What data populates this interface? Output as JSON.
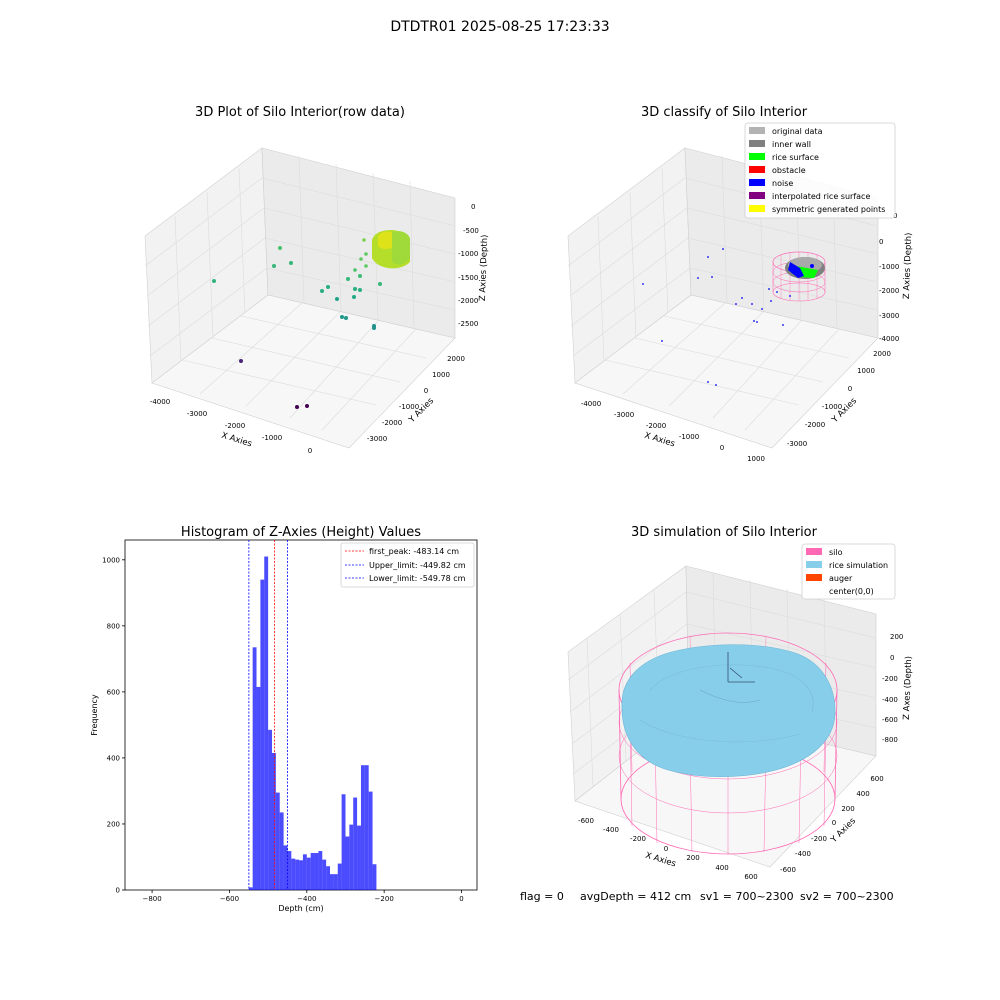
{
  "figure": {
    "suptitle": "DTDTR01 2025-08-25 17:23:33",
    "footer": {
      "flag": "flag = 0",
      "avg_depth": "avgDepth = 412 cm",
      "sv1": "sv1 = 700~2300",
      "sv2": "sv2 = 700~2300"
    }
  },
  "chart_data": [
    {
      "type": "scatter",
      "title": "3D Plot of Silo Interior(row data)",
      "xlabel": "X Axies",
      "ylabel": "Y Axies",
      "zlabel": "Z Axies (Depth)",
      "x_ticks": [
        "-4000",
        "-3000",
        "-2000",
        "-1000",
        "0"
      ],
      "y_ticks": [
        "2000",
        "1000",
        "0",
        "-1000",
        "-2000",
        "-3000"
      ],
      "z_ticks": [
        "0",
        "-500",
        "-1000",
        "-1500",
        "-2000",
        "-2500"
      ],
      "colormap": "viridis"
    },
    {
      "type": "scatter",
      "title": "3D classify of Silo Interior",
      "xlabel": "X Axies",
      "ylabel": "Y Axies",
      "zlabel": "Z Axies (Depth)",
      "x_ticks": [
        "-4000",
        "-3000",
        "-2000",
        "-1000",
        "0",
        "1000"
      ],
      "y_ticks": [
        "2000",
        "1000",
        "0",
        "-1000",
        "-2000",
        "-3000"
      ],
      "z_ticks": [
        "0",
        "-1000",
        "-2000",
        "-3000",
        "-4000"
      ],
      "legend": {
        "position": "upper right",
        "entries": [
          {
            "label": "original data",
            "color": "#b3b3b3"
          },
          {
            "label": "inner wall",
            "color": "#808080"
          },
          {
            "label": "rice surface",
            "color": "#00ff00"
          },
          {
            "label": "obstacle",
            "color": "#ff0000"
          },
          {
            "label": "noise",
            "color": "#0000ff"
          },
          {
            "label": "interpolated rice surface",
            "color": "#800080"
          },
          {
            "label": "symmetric generated points",
            "color": "#ffff00"
          }
        ]
      }
    },
    {
      "type": "bar",
      "title": "Histogram of Z-Axies (Height) Values",
      "xlabel": "Depth (cm)",
      "ylabel": "Frequency",
      "xlim": [
        -870,
        40
      ],
      "ylim": [
        0,
        1060
      ],
      "x_ticks": [
        -800,
        -600,
        -400,
        -200,
        0
      ],
      "y_ticks": [
        0,
        200,
        400,
        600,
        800,
        1000
      ],
      "bin_width": 10,
      "bar_color": "#0000ff",
      "bins": [
        {
          "x0": -550,
          "count": 8
        },
        {
          "x0": -540,
          "count": 735
        },
        {
          "x0": -530,
          "count": 615
        },
        {
          "x0": -520,
          "count": 940
        },
        {
          "x0": -510,
          "count": 1010
        },
        {
          "x0": -500,
          "count": 485
        },
        {
          "x0": -490,
          "count": 415
        },
        {
          "x0": -480,
          "count": 295
        },
        {
          "x0": -470,
          "count": 235
        },
        {
          "x0": -460,
          "count": 135
        },
        {
          "x0": -450,
          "count": 118
        },
        {
          "x0": -440,
          "count": 95
        },
        {
          "x0": -430,
          "count": 92
        },
        {
          "x0": -420,
          "count": 90
        },
        {
          "x0": -410,
          "count": 108
        },
        {
          "x0": -400,
          "count": 98
        },
        {
          "x0": -390,
          "count": 112
        },
        {
          "x0": -380,
          "count": 112
        },
        {
          "x0": -370,
          "count": 118
        },
        {
          "x0": -360,
          "count": 92
        },
        {
          "x0": -350,
          "count": 72
        },
        {
          "x0": -340,
          "count": 48
        },
        {
          "x0": -330,
          "count": 48
        },
        {
          "x0": -320,
          "count": 80
        },
        {
          "x0": -310,
          "count": 290
        },
        {
          "x0": -300,
          "count": 162
        },
        {
          "x0": -290,
          "count": 198
        },
        {
          "x0": -280,
          "count": 280
        },
        {
          "x0": -270,
          "count": 195
        },
        {
          "x0": -260,
          "count": 378
        },
        {
          "x0": -250,
          "count": 378
        },
        {
          "x0": -240,
          "count": 298
        },
        {
          "x0": -230,
          "count": 78
        }
      ],
      "vlines": [
        {
          "label": "first_peak: -483.14 cm",
          "x": -483.14,
          "color": "#ff0000"
        },
        {
          "label": "Upper_limit: -449.82 cm",
          "x": -449.82,
          "color": "#0000ff"
        },
        {
          "label": "Lower_limit: -549.78 cm",
          "x": -549.78,
          "color": "#0000ff"
        }
      ]
    },
    {
      "type": "surface",
      "title": "3D simulation of Silo Interior",
      "xlabel": "X Axies",
      "ylabel": "Y Axies",
      "zlabel": "Z Axes (Depth)",
      "x_ticks": [
        "-600",
        "-400",
        "-200",
        "0",
        "200",
        "400",
        "600"
      ],
      "y_ticks": [
        "600",
        "400",
        "200",
        "0",
        "-200",
        "-400",
        "-600"
      ],
      "z_ticks": [
        "200",
        "0",
        "-200",
        "-400",
        "-600",
        "-800"
      ],
      "legend": {
        "position": "upper right",
        "entries": [
          {
            "label": "silo",
            "color": "#ff69b4"
          },
          {
            "label": "rice simulation",
            "color": "#87ceeb"
          },
          {
            "label": "auger",
            "color": "#ff4500"
          },
          {
            "label": "center(0,0)",
            "color": "#ffffff"
          }
        ]
      }
    }
  ]
}
